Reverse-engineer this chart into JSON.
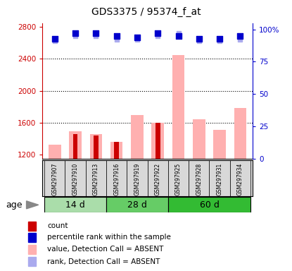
{
  "title": "GDS3375 / 95374_f_at",
  "samples": [
    "GSM297907",
    "GSM297910",
    "GSM297913",
    "GSM297916",
    "GSM297919",
    "GSM297922",
    "GSM297925",
    "GSM297928",
    "GSM297931",
    "GSM297934"
  ],
  "value_absent": [
    1320,
    1490,
    1460,
    1360,
    1700,
    1600,
    2450,
    1640,
    1510,
    1780
  ],
  "count": [
    null,
    1460,
    1440,
    1360,
    null,
    1600,
    null,
    null,
    null,
    null
  ],
  "percentile_rank": [
    93,
    97,
    97,
    95,
    94,
    97,
    95,
    93,
    93,
    95
  ],
  "rank_absent": [
    91,
    95,
    95,
    92,
    92,
    95,
    97,
    91,
    91,
    92
  ],
  "ylim_left": [
    1150,
    2850
  ],
  "ylim_right": [
    0,
    105
  ],
  "yticks_left": [
    1200,
    1600,
    2000,
    2400,
    2800
  ],
  "yticks_right": [
    0,
    25,
    50,
    75,
    100
  ],
  "ytick_labels_right": [
    "0",
    "25",
    "50",
    "75",
    "100%"
  ],
  "left_axis_color": "#cc0000",
  "right_axis_color": "#0000cc",
  "bar_absent_color": "#ffb0b0",
  "count_color": "#cc0000",
  "marker_rank_color": "#0000cc",
  "marker_rank_absent_color": "#aaaaee",
  "groups_info": [
    {
      "label": "14 d",
      "start": 0,
      "end": 2,
      "color": "#aaddaa"
    },
    {
      "label": "28 d",
      "start": 3,
      "end": 5,
      "color": "#66cc66"
    },
    {
      "label": "60 d",
      "start": 6,
      "end": 9,
      "color": "#33bb33"
    }
  ],
  "legend_items": [
    {
      "color": "#cc0000",
      "label": "count"
    },
    {
      "color": "#0000cc",
      "label": "percentile rank within the sample"
    },
    {
      "color": "#ffb0b0",
      "label": "value, Detection Call = ABSENT"
    },
    {
      "color": "#aaaaee",
      "label": "rank, Detection Call = ABSENT"
    }
  ],
  "age_label": "age",
  "background_color": "#ffffff",
  "grid_lines": [
    1600,
    2000,
    2400
  ],
  "sample_box_color": "#d8d8d8",
  "title_fontsize": 10,
  "tick_fontsize": 7.5,
  "sample_fontsize": 5.5,
  "legend_fontsize": 7.5,
  "age_fontsize": 9,
  "group_label_fontsize": 9
}
